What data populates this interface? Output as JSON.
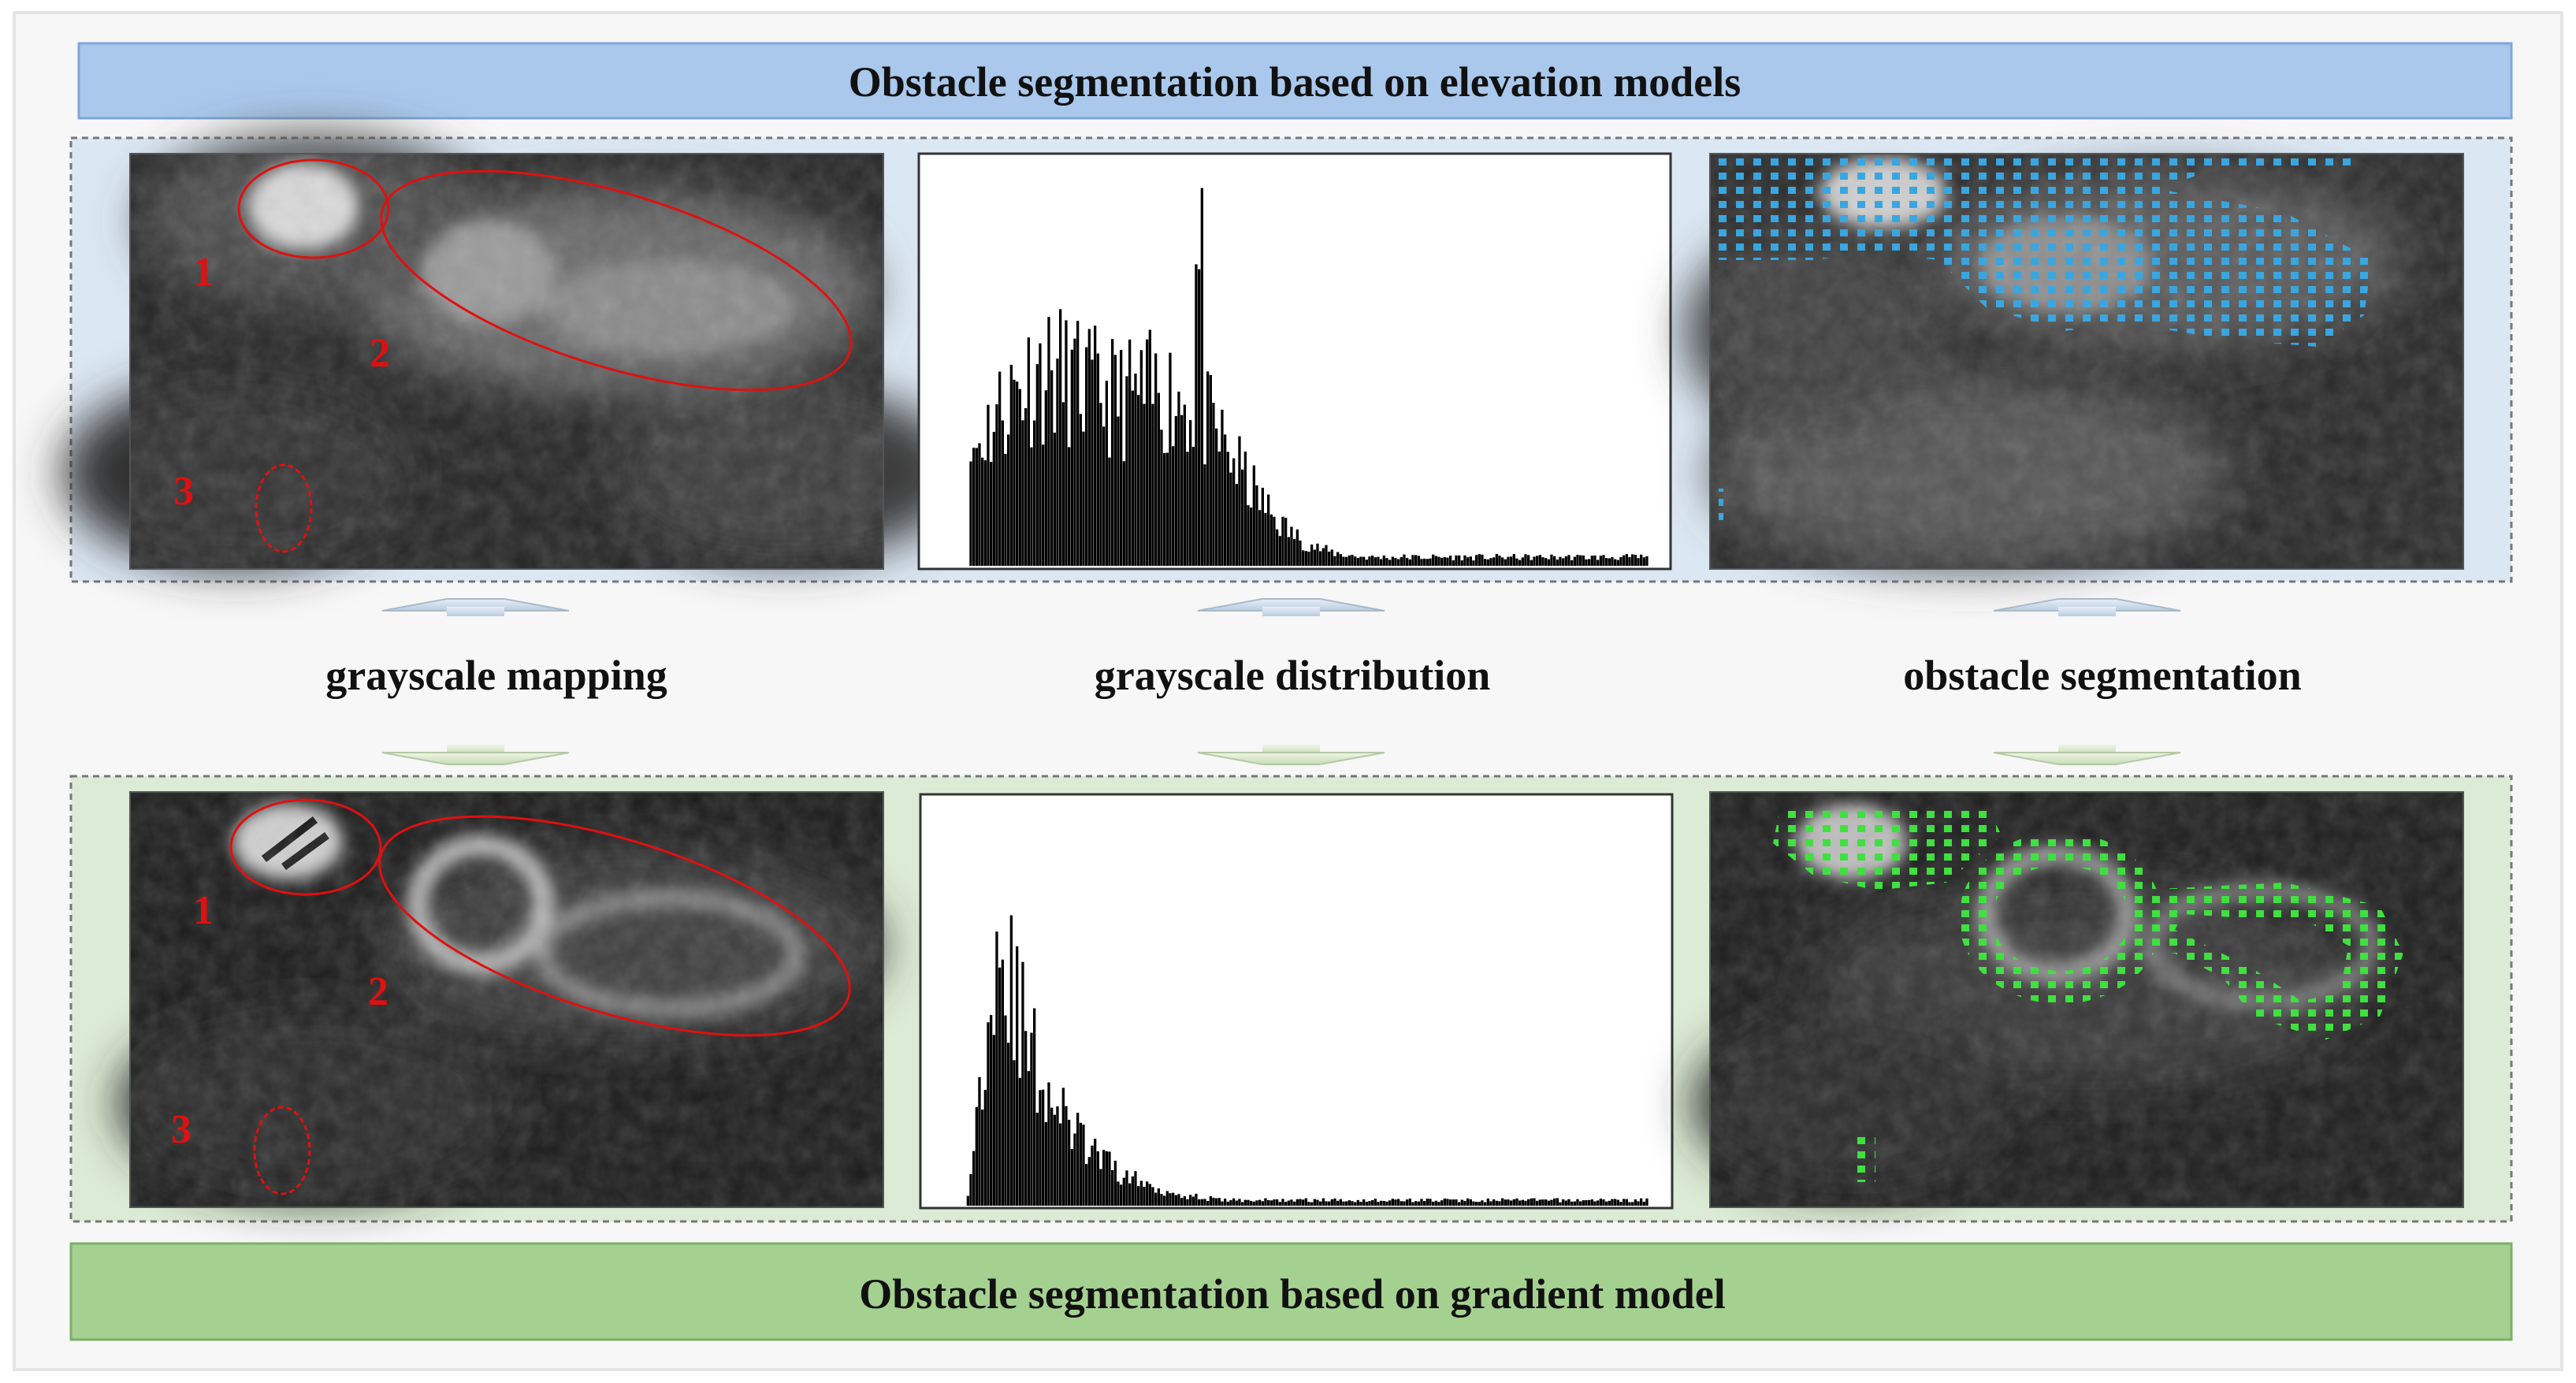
{
  "top_banner": {
    "text": "Obstacle segmentation based on elevation models"
  },
  "bottom_banner": {
    "text": "Obstacle segmentation based on gradient model"
  },
  "stages": [
    {
      "label": "grayscale mapping"
    },
    {
      "label": "grayscale distribution"
    },
    {
      "label": "obstacle segmentation"
    }
  ],
  "region_markers": {
    "r1": "1",
    "r2": "2",
    "r3": "3"
  },
  "colors": {
    "top_banner": "#a9c8ec",
    "top_band": "#dbe7f2",
    "bottom_banner": "#a5d190",
    "bottom_band": "#dcebd5",
    "segment_top": "#3aa6e0",
    "segment_bottom": "#3fe040",
    "marker": "#e01010"
  }
}
